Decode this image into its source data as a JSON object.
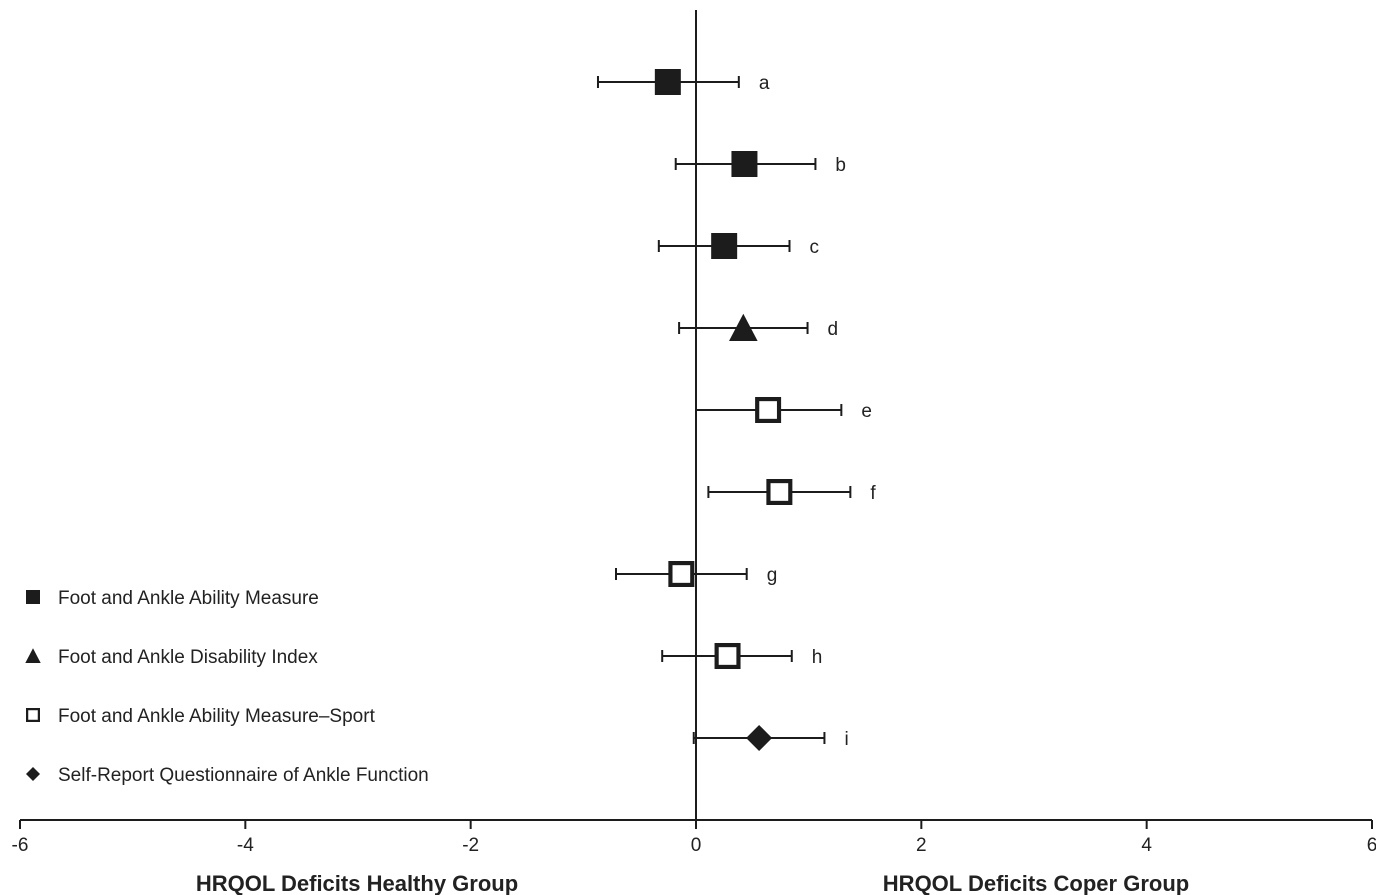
{
  "chart_data": {
    "type": "scatter",
    "subtype": "forest-plot",
    "title": "",
    "xlim": [
      -6,
      6
    ],
    "xticks": [
      -6,
      -4,
      -2,
      0,
      2,
      4,
      6
    ],
    "xtick_labels": [
      "-6",
      "-4",
      "-2",
      "0",
      "2",
      "4",
      "6"
    ],
    "xlabel_left": "HRQOL Deficits Healthy Group",
    "xlabel_right": "HRQOL Deficits Coper Group",
    "reference_line_x": 0,
    "grid": false,
    "legend_position": "bottom-left",
    "legend": [
      {
        "marker": "filled-square",
        "label": "Foot and Ankle Ability Measure"
      },
      {
        "marker": "filled-triangle",
        "label": "Foot and Ankle Disability Index"
      },
      {
        "marker": "open-square",
        "label": "Foot and Ankle Ability Measure–Sport"
      },
      {
        "marker": "filled-diamond",
        "label": "Self-Report Questionnaire of Ankle Function"
      }
    ],
    "points": [
      {
        "label": "a",
        "measure": "Foot and Ankle Ability Measure",
        "marker": "filled-square",
        "estimate": -0.25,
        "lower": -0.87,
        "upper": 0.38
      },
      {
        "label": "b",
        "measure": "Foot and Ankle Ability Measure",
        "marker": "filled-square",
        "estimate": 0.43,
        "lower": -0.18,
        "upper": 1.06
      },
      {
        "label": "c",
        "measure": "Foot and Ankle Ability Measure",
        "marker": "filled-square",
        "estimate": 0.25,
        "lower": -0.33,
        "upper": 0.83
      },
      {
        "label": "d",
        "measure": "Foot and Ankle Disability Index",
        "marker": "filled-triangle",
        "estimate": 0.42,
        "lower": -0.15,
        "upper": 0.99
      },
      {
        "label": "e",
        "measure": "Foot and Ankle Ability Measure–Sport",
        "marker": "open-square",
        "estimate": 0.64,
        "lower": 0.0,
        "upper": 1.29
      },
      {
        "label": "f",
        "measure": "Foot and Ankle Ability Measure–Sport",
        "marker": "open-square",
        "estimate": 0.74,
        "lower": 0.11,
        "upper": 1.37
      },
      {
        "label": "g",
        "measure": "Foot and Ankle Ability Measure–Sport",
        "marker": "open-square",
        "estimate": -0.13,
        "lower": -0.71,
        "upper": 0.45
      },
      {
        "label": "h",
        "measure": "Foot and Ankle Ability Measure–Sport",
        "marker": "open-square",
        "estimate": 0.28,
        "lower": -0.3,
        "upper": 0.85
      },
      {
        "label": "i",
        "measure": "Self-Report Questionnaire of Ankle Function",
        "marker": "filled-diamond",
        "estimate": 0.56,
        "lower": -0.02,
        "upper": 1.14
      }
    ],
    "colors": {
      "ink": "#1c1c1c",
      "background": "#ffffff"
    }
  }
}
